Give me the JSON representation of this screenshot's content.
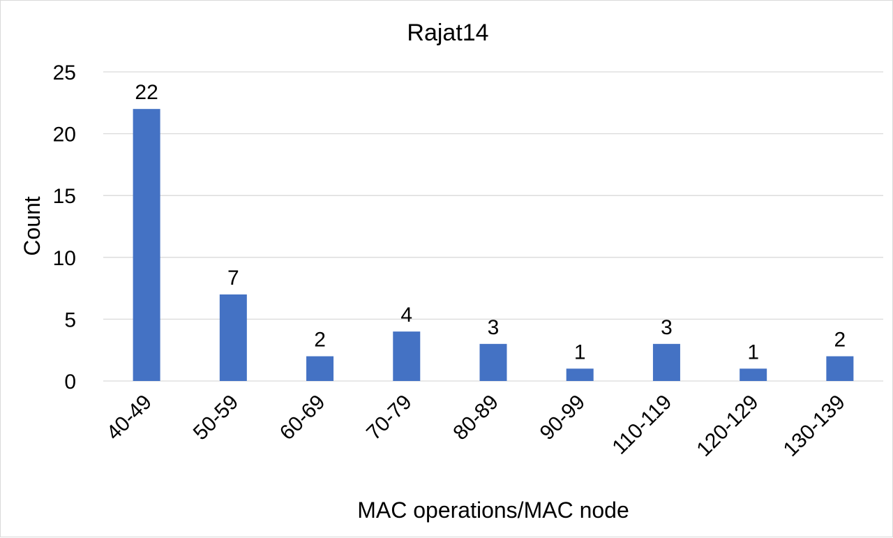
{
  "chart_data": {
    "type": "bar",
    "title": "Rajat14",
    "xlabel": "MAC operations/MAC node",
    "ylabel": "Count",
    "categories": [
      "40-49",
      "50-59",
      "60-69",
      "70-79",
      "80-89",
      "90-99",
      "110-119",
      "120-129",
      "130-139"
    ],
    "values": [
      22,
      7,
      2,
      4,
      3,
      1,
      3,
      1,
      2
    ],
    "data_labels": [
      "22",
      "7",
      "2",
      "4",
      "3",
      "1",
      "3",
      "1",
      "2"
    ],
    "ylim": [
      0,
      25
    ],
    "yticks": [
      0,
      5,
      10,
      15,
      20,
      25
    ],
    "ytick_labels": [
      "0",
      "5",
      "10",
      "15",
      "20",
      "25"
    ],
    "grid": true,
    "legend": "none",
    "bar_color": "#4472c4",
    "grid_color": "#d9d9d9"
  }
}
